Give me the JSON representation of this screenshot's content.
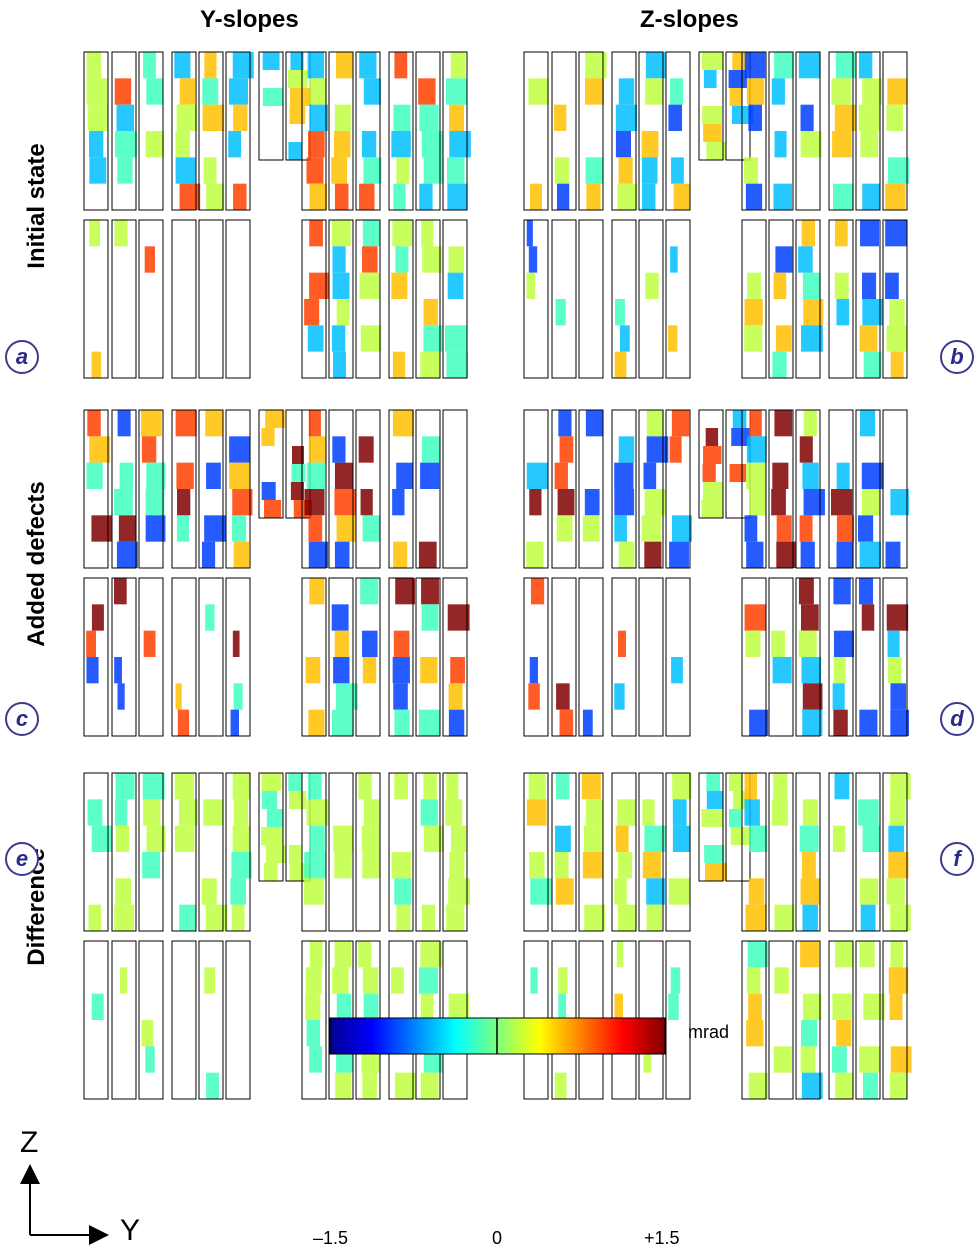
{
  "columns": {
    "left": "Y-slopes",
    "right": "Z-slopes"
  },
  "rows": [
    "Initial state",
    "Added defects",
    "Difference"
  ],
  "panel_labels": [
    "a",
    "b",
    "c",
    "d",
    "e",
    "f"
  ],
  "axes": {
    "vertical": "Z",
    "horizontal": "Y"
  },
  "colorbar": {
    "unit": "mrad",
    "min_label": "–1.5",
    "mid_label": "0",
    "max_label": "+1.5",
    "colors": [
      "#00008f",
      "#0040ff",
      "#00bfff",
      "#40ffbf",
      "#bfff40",
      "#ffbf00",
      "#ff4000",
      "#800000"
    ]
  }
}
